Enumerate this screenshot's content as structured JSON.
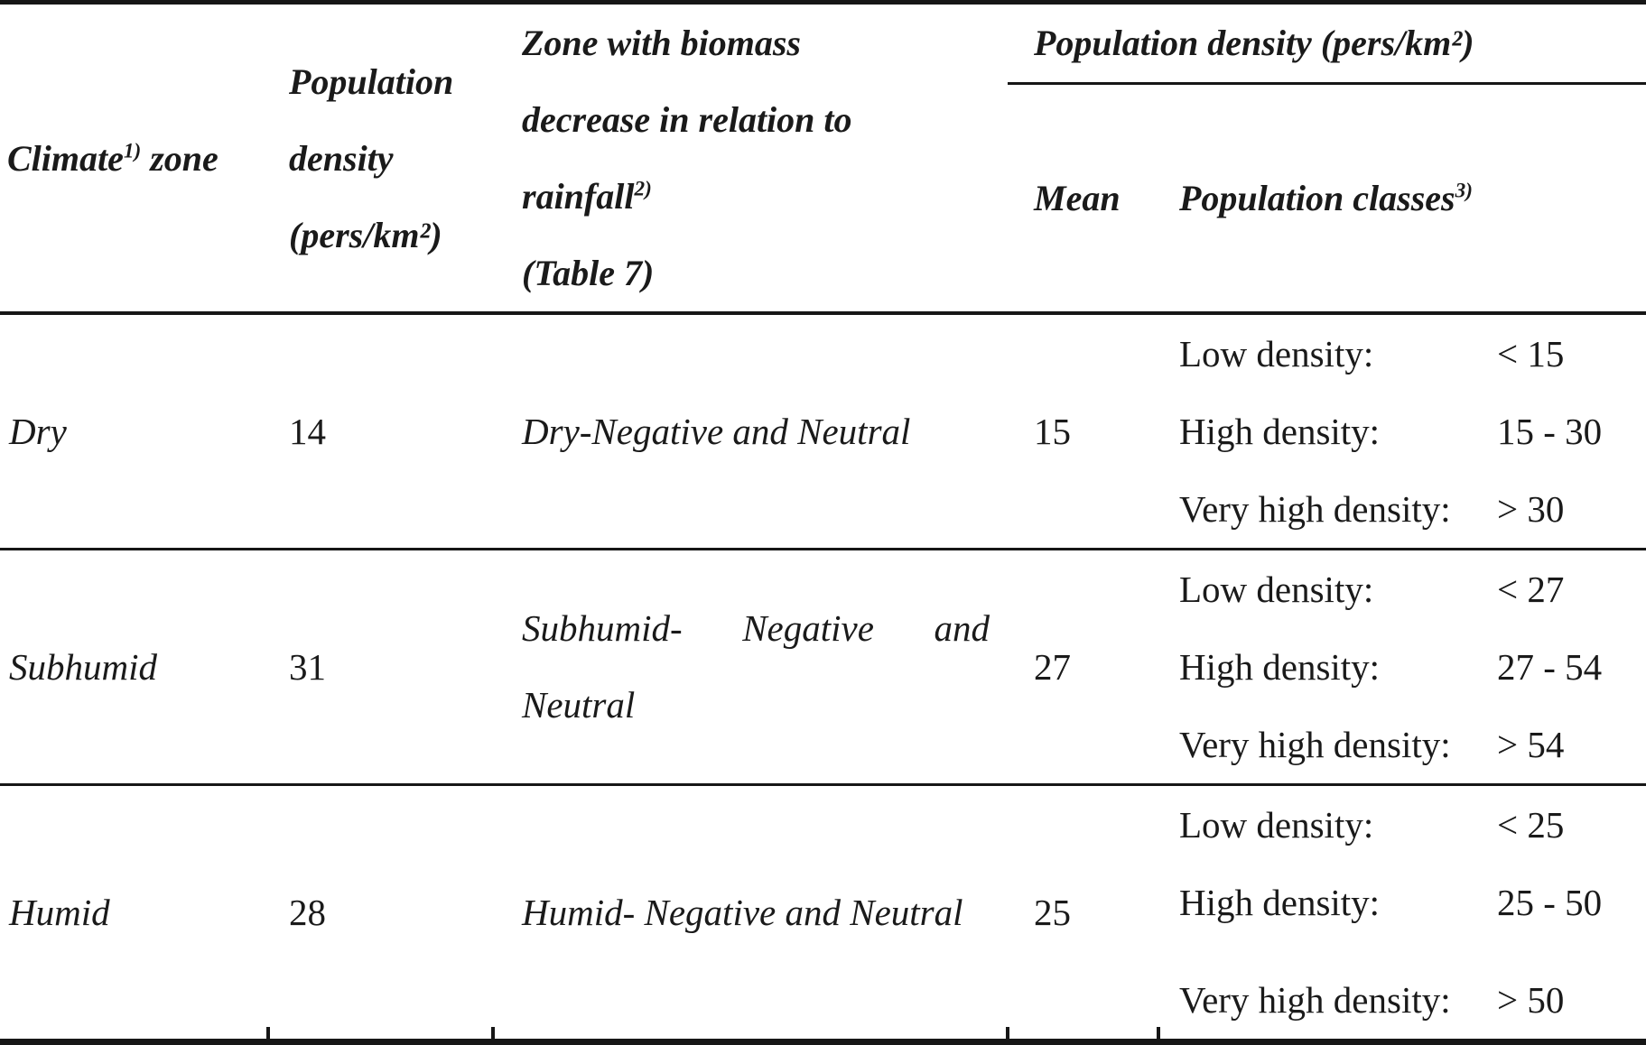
{
  "table": {
    "header": {
      "climate": {
        "pre": "Climate",
        "sup": "1)",
        "post": " zone"
      },
      "pop_density": {
        "line1": "Population",
        "line2": "density",
        "line3": "(pers/km²)"
      },
      "biomass": {
        "line1": "Zone with biomass",
        "line2": "decrease in relation to",
        "line3_pre": "rainfall",
        "line3_sup": "2)",
        "line4": "(Table 7)"
      },
      "group": "Population density (pers/km²)",
      "mean": "Mean",
      "classes_pre": "Population classes",
      "classes_sup": "3)"
    },
    "rows": [
      {
        "zone": "Dry",
        "density": "14",
        "biomass_line1": "Dry-Negative and Neutral",
        "biomass_line2": "",
        "mean": "15",
        "classes": [
          {
            "label": "Low density:",
            "value": "< 15"
          },
          {
            "label": "High density:",
            "value": "15 - 30"
          },
          {
            "label": "Very high density:",
            "value": "> 30"
          }
        ]
      },
      {
        "zone": "Subhumid",
        "density": "31",
        "biomass_line1": "Subhumid- Negative and",
        "biomass_line2": "Neutral",
        "mean": "27",
        "classes": [
          {
            "label": "Low density:",
            "value": "< 27"
          },
          {
            "label": "High density:",
            "value": "27 - 54"
          },
          {
            "label": "Very high density:",
            "value": "> 54"
          }
        ]
      },
      {
        "zone": "Humid",
        "density": "28",
        "biomass_line1": "Humid- Negative and Neutral",
        "biomass_line2": "",
        "mean": "25",
        "classes": [
          {
            "label": "Low density:",
            "value": "< 25"
          },
          {
            "label": "High density:",
            "value": "25 - 50"
          },
          {
            "label": "Very high density:",
            "value": "> 50"
          }
        ]
      }
    ],
    "colors": {
      "text": "#1a1a1a",
      "border": "#161616",
      "background": "#ffffff"
    }
  }
}
